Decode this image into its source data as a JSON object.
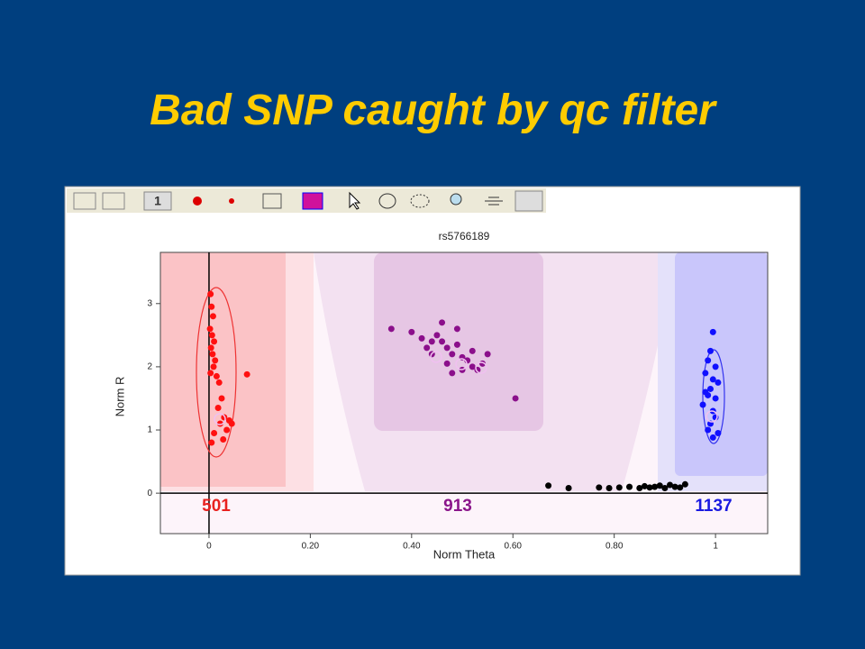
{
  "slide": {
    "title": "Bad SNP caught by qc filter"
  },
  "toolbar": {
    "label": "1"
  },
  "chart_data": {
    "type": "scatter",
    "title": "rs5766189",
    "x_label": "Norm Theta",
    "y_label": "Norm R",
    "xlim": [
      -0.096,
      1.103
    ],
    "ylim": [
      -0.64,
      3.81
    ],
    "xticks": [
      0,
      {
        "value": 0.2,
        "label": "0.20"
      },
      {
        "value": 0.4,
        "label": "0.40"
      },
      {
        "value": 0.6,
        "label": "0.60"
      },
      {
        "value": 0.8,
        "label": "0.80"
      },
      1
    ],
    "yticks": [
      0,
      1,
      2,
      3
    ],
    "cluster_counts": [
      {
        "value": 501,
        "color": "#e8211f"
      },
      {
        "value": 913,
        "color": "#8b168b"
      },
      {
        "value": 1137,
        "color": "#1a1ae0"
      }
    ],
    "series": [
      {
        "color": "#ff1010",
        "x": [
          0.003,
          0.005,
          0.008,
          0.002,
          0.006,
          0.01,
          0.004,
          0.007,
          0.012,
          0.009,
          0.003,
          0.015,
          0.02,
          0.025,
          0.018,
          0.03,
          0.022,
          0.035,
          0.04,
          0.01,
          0.045,
          0.075,
          0.005,
          0.028
        ],
        "y": [
          3.15,
          2.95,
          2.8,
          2.6,
          2.5,
          2.4,
          2.3,
          2.2,
          2.1,
          2.0,
          1.9,
          1.85,
          1.75,
          1.5,
          1.35,
          1.2,
          1.1,
          1.0,
          1.15,
          0.95,
          1.1,
          1.88,
          0.8,
          0.85
        ]
      },
      {
        "color": "#8b0f8b",
        "x": [
          0.36,
          0.4,
          0.42,
          0.44,
          0.45,
          0.46,
          0.47,
          0.48,
          0.49,
          0.5,
          0.51,
          0.52,
          0.53,
          0.54,
          0.55,
          0.44,
          0.47,
          0.5,
          0.46,
          0.52,
          0.49,
          0.605,
          0.43,
          0.48
        ],
        "y": [
          2.6,
          2.55,
          2.45,
          2.4,
          2.5,
          2.7,
          2.3,
          2.2,
          2.35,
          2.15,
          2.1,
          2.25,
          1.95,
          2.05,
          2.2,
          2.2,
          2.05,
          1.95,
          2.4,
          2.0,
          2.6,
          1.5,
          2.3,
          1.9
        ]
      },
      {
        "color": "#1010ff",
        "x": [
          0.995,
          0.99,
          0.985,
          1.0,
          0.98,
          0.995,
          1.005,
          0.99,
          0.985,
          1.0,
          0.975,
          0.995,
          1.0,
          0.99,
          0.985,
          1.005,
          0.995,
          0.98
        ],
        "y": [
          2.55,
          2.25,
          2.1,
          2.0,
          1.9,
          1.8,
          1.75,
          1.65,
          1.55,
          1.5,
          1.4,
          1.3,
          1.2,
          1.1,
          1.0,
          0.95,
          0.88,
          1.6
        ]
      },
      {
        "color": "#000000",
        "x": [
          0.67,
          0.71,
          0.77,
          0.79,
          0.81,
          0.83,
          0.85,
          0.86,
          0.87,
          0.88,
          0.89,
          0.9,
          0.91,
          0.92,
          0.93,
          0.94
        ],
        "y": [
          0.12,
          0.08,
          0.09,
          0.08,
          0.09,
          0.1,
          0.08,
          0.11,
          0.09,
          0.1,
          0.12,
          0.08,
          0.13,
          0.1,
          0.09,
          0.14
        ]
      }
    ]
  }
}
